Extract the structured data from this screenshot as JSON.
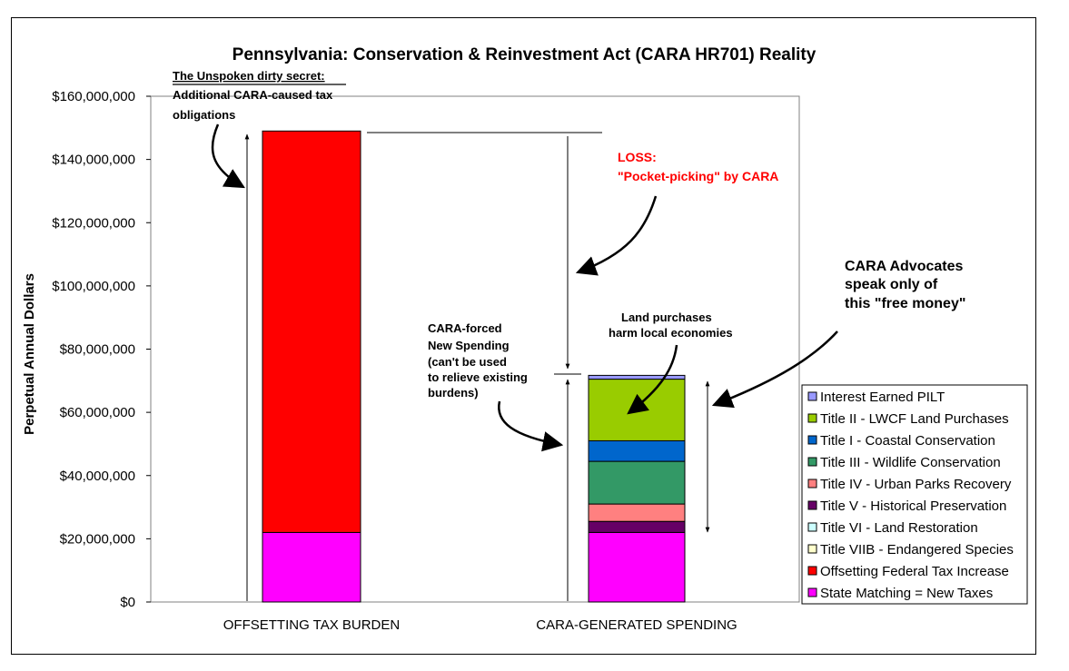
{
  "chart_data": {
    "type": "bar",
    "stacked": true,
    "title": "Pennsylvania:  Conservation & Reinvestment Act (CARA HR701) Reality",
    "ylabel": "Perpetual Annual Dollars",
    "xlabel": "",
    "ylim": [
      0,
      160000000
    ],
    "yticks": [
      0,
      20000000,
      40000000,
      60000000,
      80000000,
      100000000,
      120000000,
      140000000,
      160000000
    ],
    "ytick_labels": [
      "$0",
      "$20,000,000",
      "$40,000,000",
      "$60,000,000",
      "$80,000,000",
      "$100,000,000",
      "$120,000,000",
      "$140,000,000",
      "$160,000,000"
    ],
    "categories": [
      "OFFSETTING TAX BURDEN",
      "CARA-GENERATED SPENDING"
    ],
    "legend_position": "right",
    "grid": false,
    "series": [
      {
        "name": "State Matching = New Taxes",
        "color": "#ff00ff",
        "values": [
          22000000,
          22000000
        ]
      },
      {
        "name": "Offsetting Federal Tax Increase",
        "color": "#ff0000",
        "values": [
          127000000,
          0
        ]
      },
      {
        "name": "Title VIIB - Endangered Species",
        "color": "#ffffcc",
        "values": [
          0,
          0
        ]
      },
      {
        "name": "Title VI - Land Restoration",
        "color": "#ccffff",
        "values": [
          0,
          0
        ]
      },
      {
        "name": "Title V - Historical Preservation",
        "color": "#660066",
        "values": [
          0,
          3500000
        ]
      },
      {
        "name": "Title IV - Urban Parks Recovery",
        "color": "#ff8080",
        "values": [
          0,
          5500000
        ]
      },
      {
        "name": "Title III - Wildlife Conservation",
        "color": "#339966",
        "values": [
          0,
          13500000
        ]
      },
      {
        "name": "Title I - Coastal Conservation",
        "color": "#0066cc",
        "values": [
          0,
          6500000
        ]
      },
      {
        "name": "Title II - LWCF Land Purchases",
        "color": "#99cc00",
        "values": [
          0,
          19500000
        ]
      },
      {
        "name": "Interest Earned PILT",
        "color": "#9999ff",
        "values": [
          0,
          1200000
        ]
      }
    ],
    "annotations": {
      "secret": [
        "The Unspoken dirty secret:",
        "Additional CARA-caused tax",
        "obligations"
      ],
      "loss": [
        "LOSS:",
        "\"Pocket-picking\" by CARA"
      ],
      "forced": [
        "CARA-forced",
        "New Spending",
        "(can't be used",
        "to relieve existing",
        "burdens)"
      ],
      "land": [
        "Land purchases",
        "harm local economies"
      ],
      "advocates": [
        "CARA Advocates",
        "speak only of",
        "this \"free money\""
      ]
    }
  }
}
